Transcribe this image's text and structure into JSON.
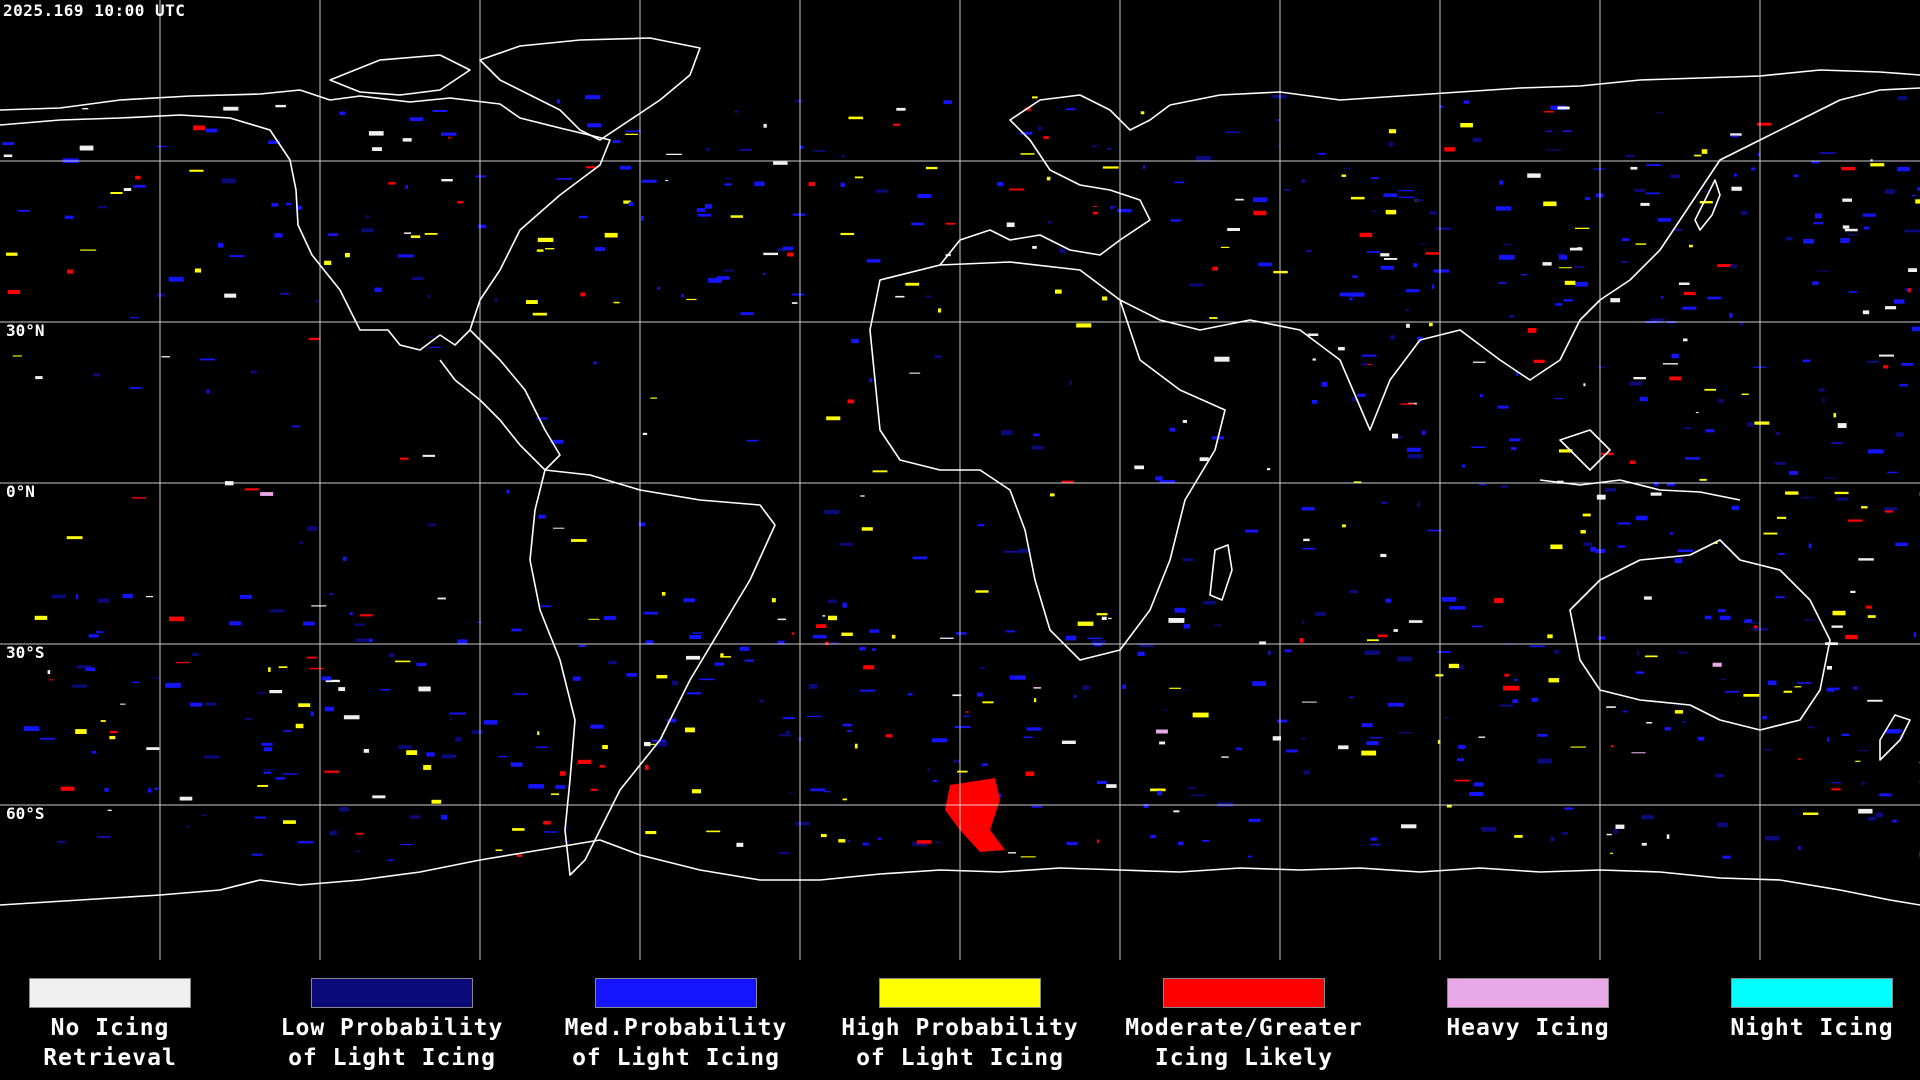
{
  "timestamp": "2025.169 10:00 UTC",
  "latitude_labels": [
    "30°N",
    "0°N",
    "30°S",
    "60°S"
  ],
  "colors": {
    "background": "#000000",
    "grid": "#ffffff",
    "coastline": "#ffffff",
    "no_icing_retrieval": "#f0f0f0",
    "low_probability": "#0a0a7a",
    "med_probability": "#1414ff",
    "high_probability": "#ffff00",
    "moderate_greater": "#ff0000",
    "heavy_icing": "#e8a8e8",
    "night_icing": "#00ffff"
  },
  "legend": [
    {
      "label": "No Icing\nRetrieval",
      "color": "#f0f0f0"
    },
    {
      "label": "Low Probability\nof Light Icing",
      "color": "#0a0a7a"
    },
    {
      "label": "Med.Probability\nof Light Icing",
      "color": "#1414ff"
    },
    {
      "label": "High Probability\nof Light Icing",
      "color": "#ffff00"
    },
    {
      "label": "Moderate/Greater\nIcing Likely",
      "color": "#ff0000"
    },
    {
      "label": "Heavy Icing",
      "color": "#e8a8e8"
    },
    {
      "label": "Night Icing",
      "color": "#00ffff"
    }
  ]
}
